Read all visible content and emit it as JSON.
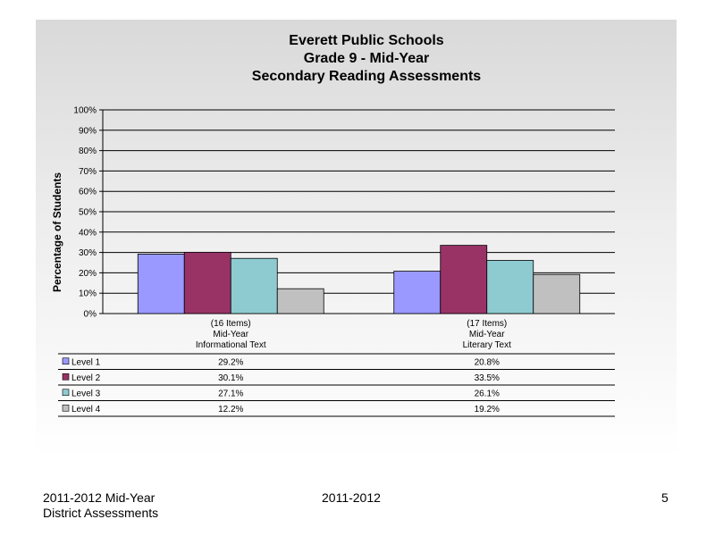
{
  "chart_data": {
    "type": "bar",
    "title": [
      "Everett Public Schools",
      "Grade 9 - Mid-Year",
      "Secondary Reading Assessments"
    ],
    "ylabel": "Percentage of Students",
    "ylim": [
      0,
      100
    ],
    "yticks": [
      "0%",
      "10%",
      "20%",
      "30%",
      "40%",
      "50%",
      "60%",
      "70%",
      "80%",
      "90%",
      "100%"
    ],
    "grid": true,
    "categories": [
      [
        "(16 Items)",
        "Mid-Year",
        "Informational Text"
      ],
      [
        "(17 Items)",
        "Mid-Year",
        "Literary Text"
      ]
    ],
    "series": [
      {
        "name": "Level 1",
        "color": "#9999ff",
        "values": [
          29.2,
          20.8
        ],
        "labels": [
          "29.2%",
          "20.8%"
        ]
      },
      {
        "name": "Level 2",
        "color": "#993366",
        "values": [
          30.1,
          33.5
        ],
        "labels": [
          "30.1%",
          "33.5%"
        ]
      },
      {
        "name": "Level 3",
        "color": "#8ecbd1",
        "values": [
          27.1,
          26.1
        ],
        "labels": [
          "27.1%",
          "26.1%"
        ]
      },
      {
        "name": "Level 4",
        "color": "#c0c0c0",
        "values": [
          12.2,
          19.2
        ],
        "labels": [
          "12.2%",
          "19.2%"
        ]
      }
    ],
    "legend": "data-table-below"
  },
  "footer": {
    "left_line1": "2011-2012  Mid-Year",
    "left_line2": "District Assessments",
    "center": "2011-2012",
    "page_number": "5"
  }
}
